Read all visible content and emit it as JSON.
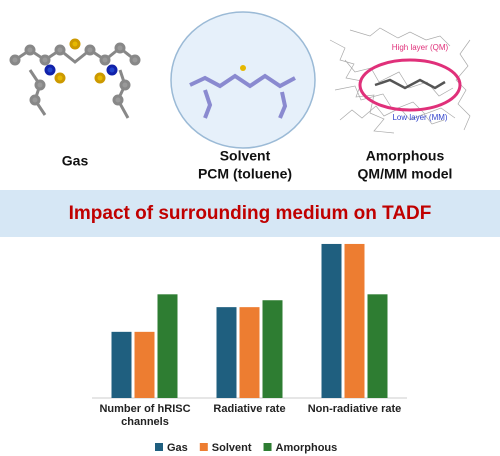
{
  "figure": {
    "labels": [
      [
        "Gas"
      ],
      [
        "Solvent",
        "PCM (toluene)"
      ],
      [
        "Amorphous",
        "QM/MM model"
      ]
    ],
    "high_layer": "High layer (QM)",
    "low_layer": "Low layer (MM)"
  },
  "chart_data": {
    "type": "bar",
    "title": "Impact of surrounding medium on TADF",
    "categories": [
      "Number of hRISC channels",
      "Radiative rate",
      "Non-radiative rate"
    ],
    "series": [
      {
        "name": "Gas",
        "color": "#1f5f7f",
        "values": [
          67,
          92,
          156
        ]
      },
      {
        "name": "Solvent",
        "color": "#ed7d31",
        "values": [
          67,
          92,
          156
        ]
      },
      {
        "name": "Amorphous",
        "color": "#2e7d32",
        "values": [
          105,
          99,
          105
        ]
      }
    ],
    "ylim": [
      0,
      160
    ]
  }
}
